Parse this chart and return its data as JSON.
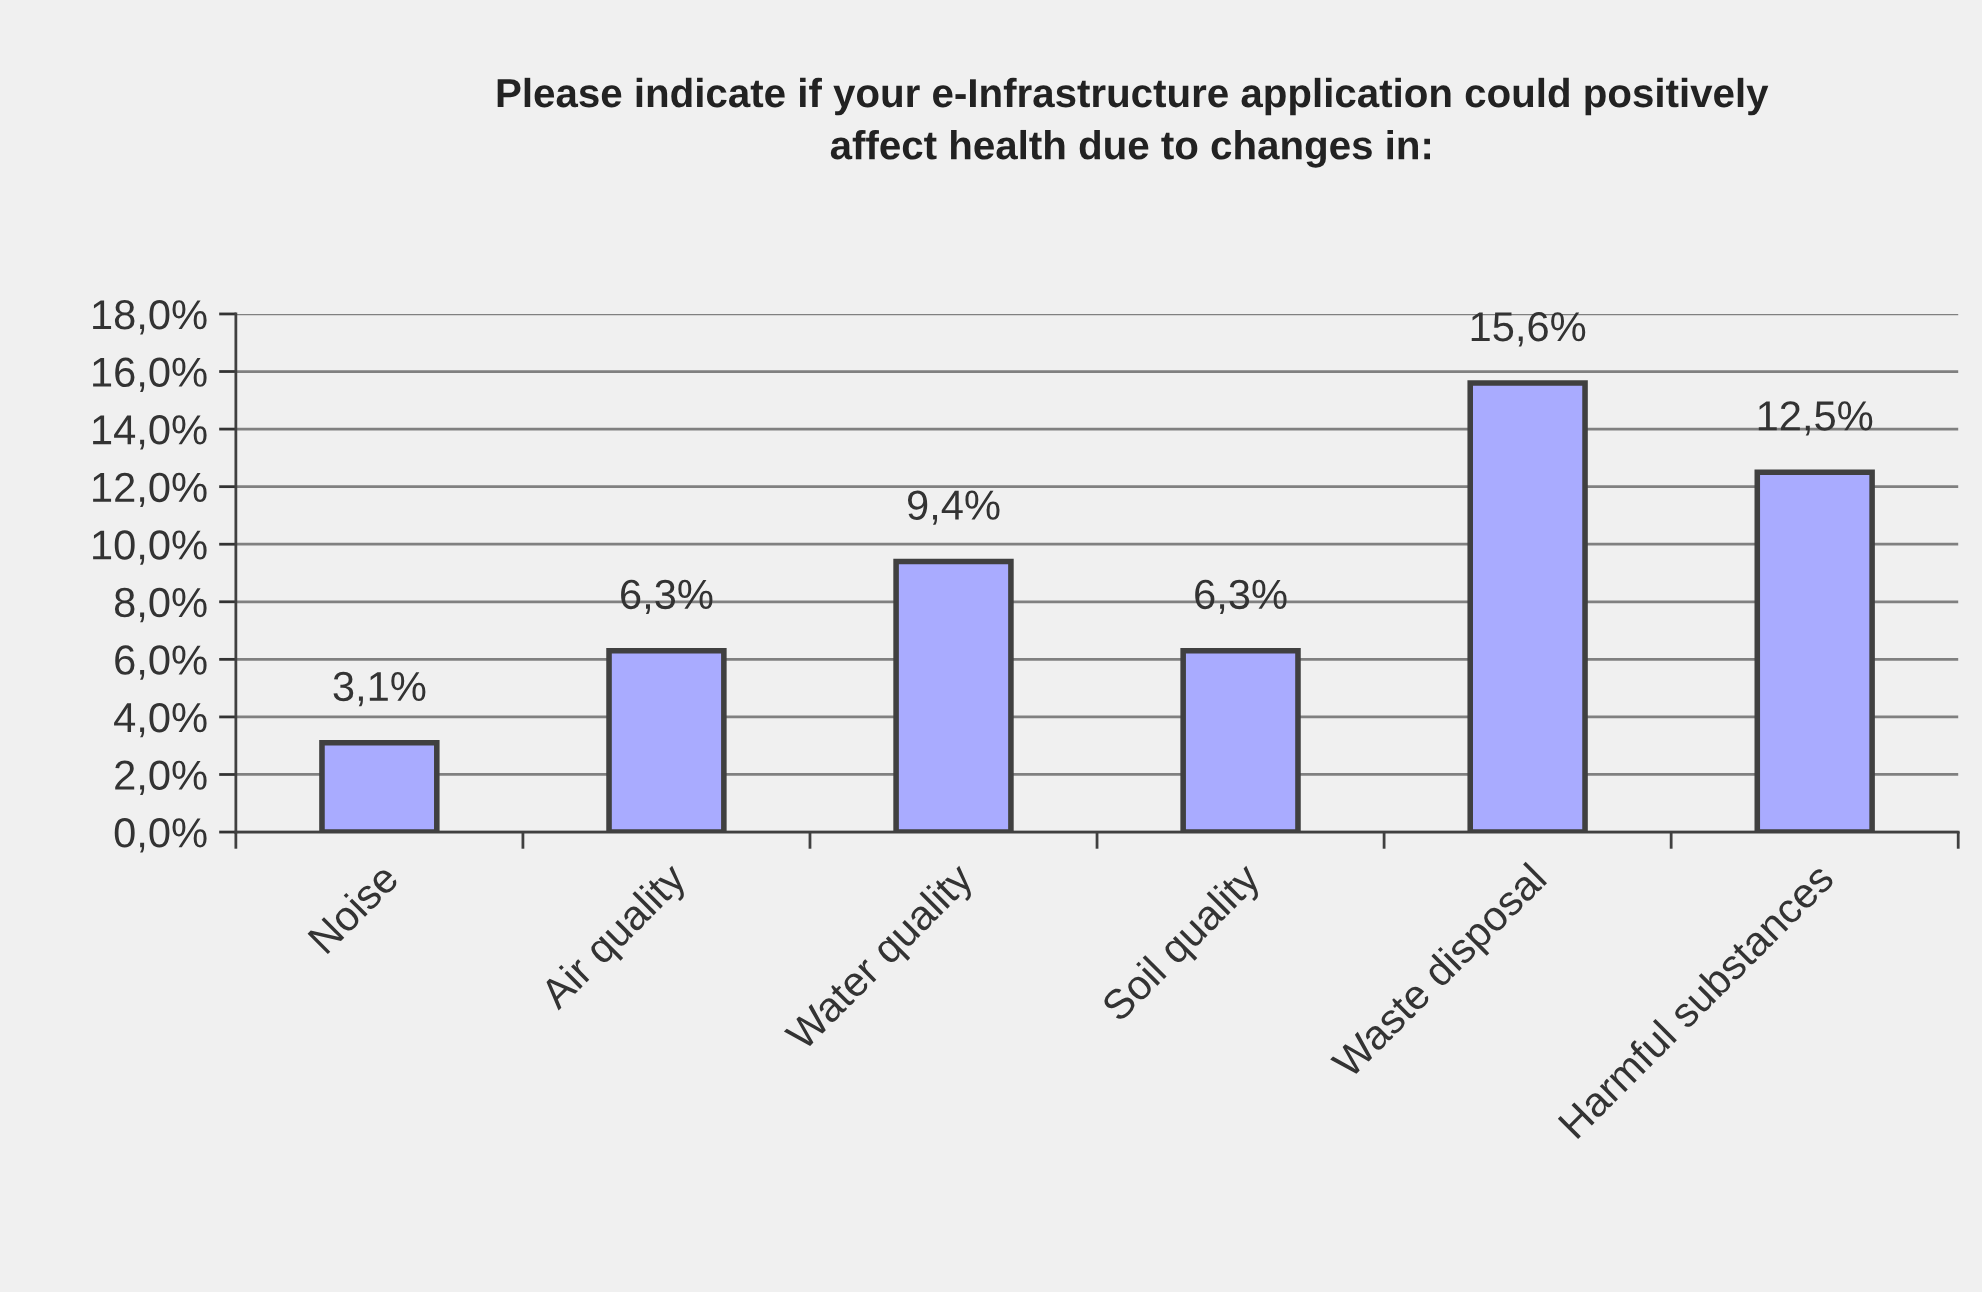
{
  "chart_data": {
    "type": "bar",
    "title": "Please indicate if your e-Infrastructure application could positively\naffect health due to changes in:",
    "categories": [
      "Noise",
      "Air quality",
      "Water quality",
      "Soil quality",
      "Waste disposal",
      "Harmful substances"
    ],
    "values": [
      3.1,
      6.3,
      9.4,
      6.3,
      15.6,
      12.5
    ],
    "value_labels": [
      "3,1%",
      "6,3%",
      "9,4%",
      "6,3%",
      "15,6%",
      "12,5%"
    ],
    "color": "#a9abff",
    "ylim": [
      0,
      18
    ],
    "yticks": [
      {
        "value": 0,
        "label": "0,0%"
      },
      {
        "value": 2,
        "label": "2,0%"
      },
      {
        "value": 4,
        "label": "4,0%"
      },
      {
        "value": 6,
        "label": "6,0%"
      },
      {
        "value": 8,
        "label": "8,0%"
      },
      {
        "value": 10,
        "label": "10,0%"
      },
      {
        "value": 12,
        "label": "12,0%"
      },
      {
        "value": 14,
        "label": "14,0%"
      },
      {
        "value": 16,
        "label": "16,0%"
      },
      {
        "value": 18,
        "label": "18,0%"
      }
    ],
    "grid": "y",
    "legend": false
  }
}
